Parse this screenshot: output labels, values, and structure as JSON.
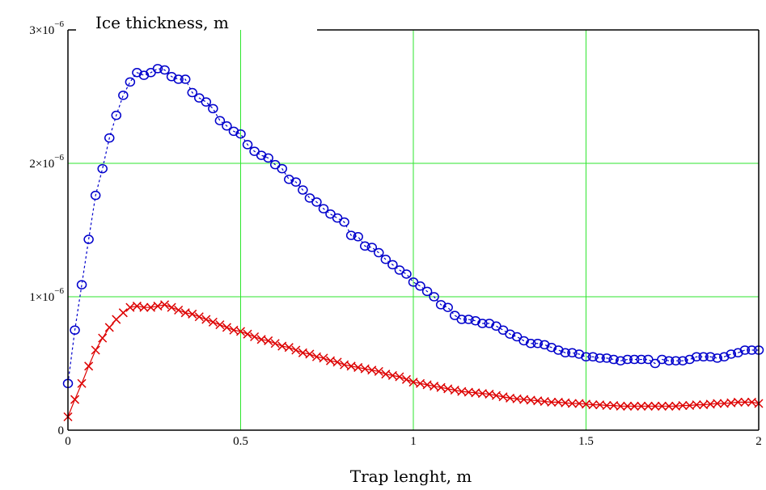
{
  "chart_data": {
    "type": "line",
    "title": "",
    "ylabel": "Ice thickness, m",
    "xlabel": "Trap lenght, m",
    "xlim": [
      0,
      2
    ],
    "ylim": [
      0,
      3e-06
    ],
    "grid": true,
    "x_ticks": [
      {
        "value": 0,
        "label": "0"
      },
      {
        "value": 0.5,
        "label": "0.5"
      },
      {
        "value": 1,
        "label": "1"
      },
      {
        "value": 1.5,
        "label": "1.5"
      },
      {
        "value": 2,
        "label": "2"
      }
    ],
    "y_ticks": [
      {
        "value": 0,
        "mantissa": "0",
        "exponent": ""
      },
      {
        "value": 1e-06,
        "mantissa": "1×10",
        "exponent": "−6"
      },
      {
        "value": 2e-06,
        "mantissa": "2×10",
        "exponent": "−6"
      },
      {
        "value": 3e-06,
        "mantissa": "3×10",
        "exponent": "−6"
      }
    ],
    "series": [
      {
        "marker": "circle",
        "line": "dashed",
        "color": "#0000cc",
        "x": [
          0.0,
          0.02,
          0.04,
          0.06,
          0.08,
          0.1,
          0.12,
          0.14,
          0.16,
          0.18,
          0.2,
          0.22,
          0.24,
          0.26,
          0.28,
          0.3,
          0.32,
          0.34,
          0.36,
          0.38,
          0.4,
          0.42,
          0.44,
          0.46,
          0.48,
          0.5,
          0.52,
          0.54,
          0.56,
          0.58,
          0.6,
          0.62,
          0.64,
          0.66,
          0.68,
          0.7,
          0.72,
          0.74,
          0.76,
          0.78,
          0.8,
          0.82,
          0.84,
          0.86,
          0.88,
          0.9,
          0.92,
          0.94,
          0.96,
          0.98,
          1.0,
          1.02,
          1.04,
          1.06,
          1.08,
          1.1,
          1.12,
          1.14,
          1.16,
          1.18,
          1.2,
          1.22,
          1.24,
          1.26,
          1.28,
          1.3,
          1.32,
          1.34,
          1.36,
          1.38,
          1.4,
          1.42,
          1.44,
          1.46,
          1.48,
          1.5,
          1.52,
          1.54,
          1.56,
          1.58,
          1.6,
          1.62,
          1.64,
          1.66,
          1.68,
          1.7,
          1.72,
          1.74,
          1.76,
          1.78,
          1.8,
          1.82,
          1.84,
          1.86,
          1.88,
          1.9,
          1.92,
          1.94,
          1.96,
          1.98,
          2.0
        ],
        "y": [
          3.5e-07,
          7.5e-07,
          1.09e-06,
          1.43e-06,
          1.76e-06,
          1.96e-06,
          2.19e-06,
          2.36e-06,
          2.51e-06,
          2.61e-06,
          2.68e-06,
          2.66e-06,
          2.68e-06,
          2.71e-06,
          2.7e-06,
          2.65e-06,
          2.63e-06,
          2.63e-06,
          2.53e-06,
          2.49e-06,
          2.46e-06,
          2.41e-06,
          2.32e-06,
          2.28e-06,
          2.24e-06,
          2.22e-06,
          2.14e-06,
          2.09e-06,
          2.06e-06,
          2.04e-06,
          1.99e-06,
          1.96e-06,
          1.88e-06,
          1.86e-06,
          1.8e-06,
          1.74e-06,
          1.71e-06,
          1.66e-06,
          1.62e-06,
          1.59e-06,
          1.56e-06,
          1.46e-06,
          1.45e-06,
          1.38e-06,
          1.37e-06,
          1.33e-06,
          1.28e-06,
          1.24e-06,
          1.2e-06,
          1.17e-06,
          1.11e-06,
          1.08e-06,
          1.04e-06,
          1e-06,
          9.4e-07,
          9.2e-07,
          8.6e-07,
          8.3e-07,
          8.3e-07,
          8.2e-07,
          8e-07,
          8e-07,
          7.8e-07,
          7.5e-07,
          7.2e-07,
          7e-07,
          6.7e-07,
          6.5e-07,
          6.5e-07,
          6.4e-07,
          6.2e-07,
          6e-07,
          5.8e-07,
          5.8e-07,
          5.7e-07,
          5.5e-07,
          5.5e-07,
          5.4e-07,
          5.4e-07,
          5.3e-07,
          5.2e-07,
          5.3e-07,
          5.3e-07,
          5.3e-07,
          5.3e-07,
          5e-07,
          5.3e-07,
          5.2e-07,
          5.2e-07,
          5.2e-07,
          5.3e-07,
          5.5e-07,
          5.5e-07,
          5.5e-07,
          5.4e-07,
          5.5e-07,
          5.7e-07,
          5.8e-07,
          6e-07,
          6e-07,
          6e-07
        ]
      },
      {
        "marker": "x",
        "line": "solid",
        "color": "#dd0000",
        "x": [
          0.0,
          0.02,
          0.04,
          0.06,
          0.08,
          0.1,
          0.12,
          0.14,
          0.16,
          0.18,
          0.2,
          0.22,
          0.24,
          0.26,
          0.28,
          0.3,
          0.32,
          0.34,
          0.36,
          0.38,
          0.4,
          0.42,
          0.44,
          0.46,
          0.48,
          0.5,
          0.52,
          0.54,
          0.56,
          0.58,
          0.6,
          0.62,
          0.64,
          0.66,
          0.68,
          0.7,
          0.72,
          0.74,
          0.76,
          0.78,
          0.8,
          0.82,
          0.84,
          0.86,
          0.88,
          0.9,
          0.92,
          0.94,
          0.96,
          0.98,
          1.0,
          1.02,
          1.04,
          1.06,
          1.08,
          1.1,
          1.12,
          1.14,
          1.16,
          1.18,
          1.2,
          1.22,
          1.24,
          1.26,
          1.28,
          1.3,
          1.32,
          1.34,
          1.36,
          1.38,
          1.4,
          1.42,
          1.44,
          1.46,
          1.48,
          1.5,
          1.52,
          1.54,
          1.56,
          1.58,
          1.6,
          1.62,
          1.64,
          1.66,
          1.68,
          1.7,
          1.72,
          1.74,
          1.76,
          1.78,
          1.8,
          1.82,
          1.84,
          1.86,
          1.88,
          1.9,
          1.92,
          1.94,
          1.96,
          1.98,
          2.0
        ],
        "y": [
          1e-07,
          2.3e-07,
          3.5e-07,
          4.8e-07,
          6e-07,
          6.9e-07,
          7.7e-07,
          8.3e-07,
          8.8e-07,
          9.2e-07,
          9.3e-07,
          9.2e-07,
          9.2e-07,
          9.3e-07,
          9.4e-07,
          9.2e-07,
          9e-07,
          8.8e-07,
          8.7e-07,
          8.5e-07,
          8.3e-07,
          8.1e-07,
          7.9e-07,
          7.7e-07,
          7.5e-07,
          7.4e-07,
          7.2e-07,
          7e-07,
          6.8e-07,
          6.7e-07,
          6.5e-07,
          6.3e-07,
          6.2e-07,
          6e-07,
          5.8e-07,
          5.7e-07,
          5.5e-07,
          5.4e-07,
          5.2e-07,
          5.1e-07,
          4.9e-07,
          4.8e-07,
          4.7e-07,
          4.6e-07,
          4.5e-07,
          4.4e-07,
          4.2e-07,
          4.1e-07,
          4e-07,
          3.8e-07,
          3.6e-07,
          3.5e-07,
          3.4e-07,
          3.3e-07,
          3.2e-07,
          3.1e-07,
          3e-07,
          2.9e-07,
          2.85e-07,
          2.8e-07,
          2.75e-07,
          2.7e-07,
          2.6e-07,
          2.5e-07,
          2.4e-07,
          2.35e-07,
          2.3e-07,
          2.25e-07,
          2.2e-07,
          2.15e-07,
          2.1e-07,
          2.1e-07,
          2.05e-07,
          2e-07,
          2e-07,
          1.95e-07,
          1.9e-07,
          1.9e-07,
          1.85e-07,
          1.85e-07,
          1.8e-07,
          1.8e-07,
          1.8e-07,
          1.8e-07,
          1.8e-07,
          1.8e-07,
          1.8e-07,
          1.8e-07,
          1.8e-07,
          1.85e-07,
          1.85e-07,
          1.9e-07,
          1.9e-07,
          1.95e-07,
          2e-07,
          2e-07,
          2.05e-07,
          2.1e-07,
          2.1e-07,
          2.1e-07,
          2e-07
        ]
      }
    ]
  }
}
